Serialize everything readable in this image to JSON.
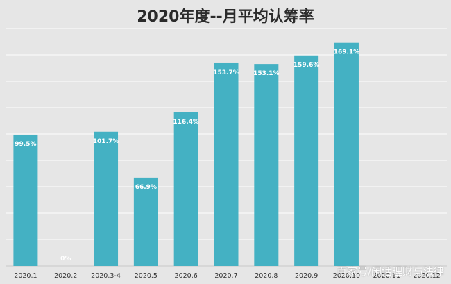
{
  "chart_data": {
    "type": "bar",
    "title": "2020年度--月平均认筹率",
    "categories": [
      "2020.1",
      "2020.2",
      "2020.3-4",
      "2020.5",
      "2020.6",
      "2020.7",
      "2020.8",
      "2020.9",
      "2020.10",
      "2020.11",
      "2020.12"
    ],
    "values": [
      99.5,
      0,
      101.7,
      66.9,
      116.4,
      153.7,
      153.1,
      159.6,
      169.1,
      null,
      null
    ],
    "labels": [
      "99.5%",
      "0%",
      "101.7%",
      "66.9%",
      "116.4%",
      "153.7%",
      "153.1%",
      "159.6%",
      "169.1%",
      "",
      ""
    ],
    "xlabel": "",
    "ylabel": "",
    "ylim": [
      0,
      180
    ],
    "grid": true,
    "colors": {
      "bar": "#44b1c3",
      "background": "#e6e6e6",
      "grid": "#ffffff"
    }
  },
  "watermark": "百家号/闲话理财与法律"
}
